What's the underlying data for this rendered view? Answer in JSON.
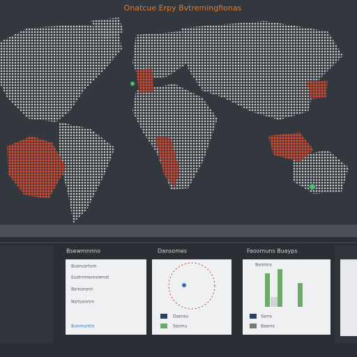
{
  "header": {
    "title": "Onatcue Erpy Bvtremingfionas"
  },
  "panels": [
    {
      "title": "Bsewmnnno",
      "lines": [
        "Busnusrtum",
        "Eustrnmsnnoemst",
        "Bsrounsnn",
        "Nsrtusnnrn",
        "Bunmuntrs"
      ]
    },
    {
      "title": "Dansomes",
      "lines": [
        "Dasnsu",
        "Ssnmu"
      ]
    },
    {
      "title": "Faoomuns Buayps",
      "lines": [
        "Bsnmns",
        "Ssms",
        "Basms"
      ]
    }
  ]
}
